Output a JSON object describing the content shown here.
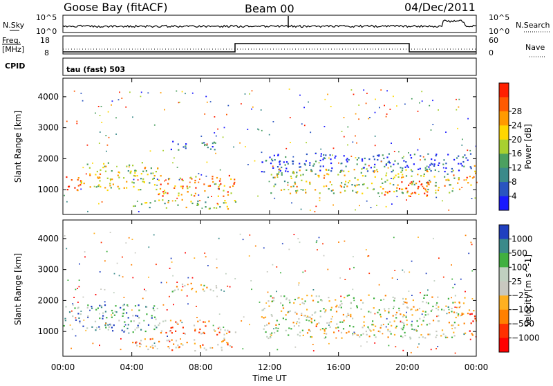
{
  "header": {
    "station": "Goose Bay (fitACF)",
    "beam": "Beam 00",
    "date": "04/Dec/2011"
  },
  "noise_panel": {
    "left_label": "N.Sky",
    "right_label": "N.Search",
    "tick_top": "10^5",
    "tick_bottom": "10^0"
  },
  "freq_panel": {
    "left_label_1": "Freq.",
    "left_label_2": "[MHz]",
    "left_tick_top": "18",
    "left_tick_bottom": "8",
    "right_label": "Nave",
    "right_tick_top": "60",
    "right_tick_bottom": "0"
  },
  "cpid": {
    "label": "CPID",
    "value": "tau (fast) 503"
  },
  "chart_data": [
    {
      "type": "heatmap",
      "name": "power",
      "ylabel": "Slant Range [km]",
      "yticks": [
        "1000",
        "2000",
        "3000",
        "4000"
      ],
      "ylim": [
        200,
        4600
      ],
      "colorbar_label": "Power [dB]",
      "colorbar_ticks": [
        "4",
        "8",
        "12",
        "16",
        "20",
        "24",
        "28"
      ],
      "colorbar_colors": [
        "#1a1aff",
        "#2a55c0",
        "#3b8a8a",
        "#4ca060",
        "#a8d030",
        "#ffd700",
        "#ff9a00",
        "#ff5a00",
        "#ff2000"
      ],
      "regions": [
        {
          "t0": 0.0,
          "t1": 1.0,
          "r0": 900,
          "r1": 1500,
          "level": 0.9
        },
        {
          "t0": 1.0,
          "t1": 5.5,
          "r0": 1000,
          "r1": 1900,
          "level": 0.55
        },
        {
          "t0": 5.5,
          "t1": 10.0,
          "r0": 800,
          "r1": 1500,
          "level": 0.75
        },
        {
          "t0": 4.0,
          "t1": 10.0,
          "r0": 400,
          "r1": 700,
          "level": 0.45
        },
        {
          "t0": 6.0,
          "t1": 9.0,
          "r0": 2300,
          "r1": 2600,
          "level": 0.2
        },
        {
          "t0": 11.5,
          "t1": 24.0,
          "r0": 1600,
          "r1": 2200,
          "level": 0.15
        },
        {
          "t0": 12.0,
          "t1": 23.0,
          "r0": 900,
          "r1": 1700,
          "level": 0.55
        },
        {
          "t0": 18.5,
          "t1": 21.5,
          "r0": 800,
          "r1": 1300,
          "level": 0.85
        },
        {
          "t0": 23.3,
          "t1": 24.0,
          "r0": 1100,
          "r1": 1800,
          "level": 0.8
        }
      ]
    },
    {
      "type": "heatmap",
      "name": "velocity",
      "ylabel": "Slant Range [km]",
      "yticks": [
        "1000",
        "2000",
        "3000",
        "4000"
      ],
      "ylim": [
        200,
        4600
      ],
      "colorbar_label": "Velocity [m s^-1]",
      "colorbar_ticks": [
        "1000",
        "500",
        "100",
        "25",
        "−25",
        "−100",
        "−500",
        "−1000"
      ],
      "colorbar_colors": [
        "#2040c0",
        "#3b8a8a",
        "#40b040",
        "#c0d0c0",
        "#c8c8c0",
        "#ffb020",
        "#ff8000",
        "#ff3000",
        "#ff0000"
      ],
      "regions": [
        {
          "t0": 0.0,
          "t1": 5.5,
          "r0": 1000,
          "r1": 1900,
          "level": 0.25
        },
        {
          "t0": 5.5,
          "t1": 10.0,
          "r0": 900,
          "r1": 1400,
          "level": 0.65
        },
        {
          "t0": 4.0,
          "t1": 10.0,
          "r0": 400,
          "r1": 800,
          "level": 0.6
        },
        {
          "t0": 6.0,
          "t1": 9.0,
          "r0": 2300,
          "r1": 2600,
          "level": 0.45
        },
        {
          "t0": 11.5,
          "t1": 23.3,
          "r0": 800,
          "r1": 2200,
          "level": 0.47
        },
        {
          "t0": 23.3,
          "t1": 24.0,
          "r0": 900,
          "r1": 1800,
          "level": 0.75
        }
      ]
    }
  ],
  "xaxis": {
    "label": "Time UT",
    "ticks": [
      "00:00",
      "04:00",
      "08:00",
      "12:00",
      "16:00",
      "20:00",
      "00:00"
    ],
    "range_hours": [
      0,
      24
    ]
  }
}
